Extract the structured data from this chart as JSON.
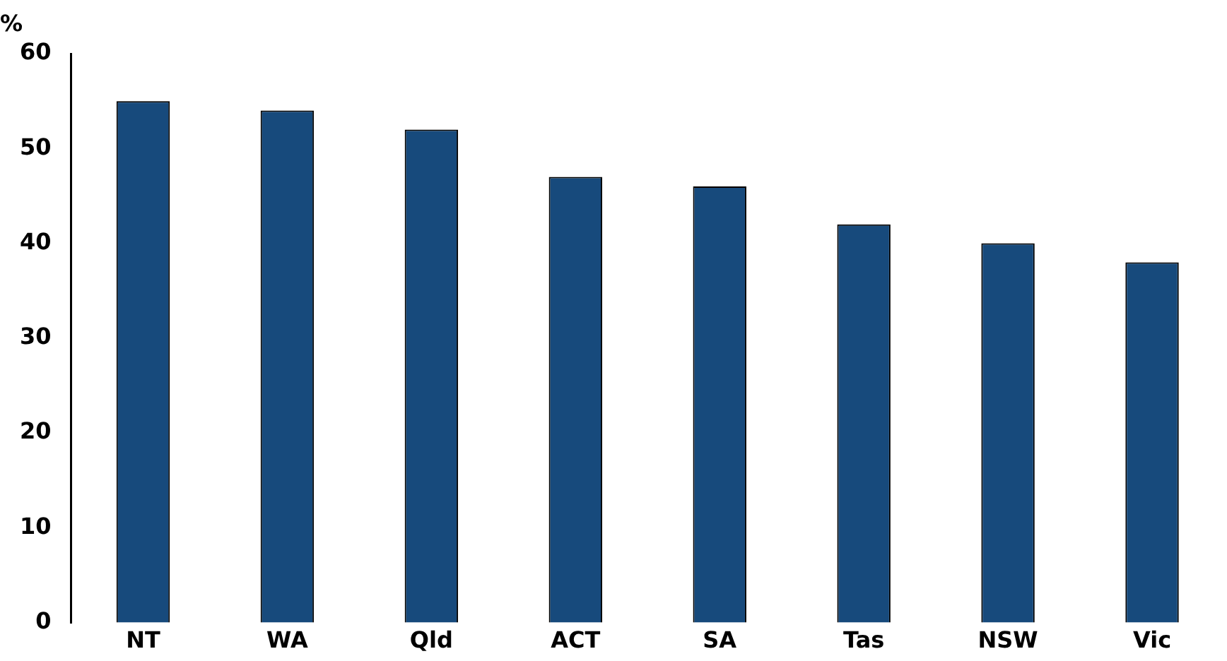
{
  "chart_data": {
    "type": "bar",
    "ylabel": "%",
    "categories": [
      "NT",
      "WA",
      "Qld",
      "ACT",
      "SA",
      "Tas",
      "NSW",
      "Vic"
    ],
    "values": [
      55,
      54,
      52,
      47,
      46,
      42,
      40,
      38
    ],
    "color": "#174a7c",
    "ylim": [
      0,
      60
    ],
    "yticks": [
      0,
      10,
      20,
      30,
      40,
      50,
      60
    ],
    "grid": false,
    "legend": false
  }
}
